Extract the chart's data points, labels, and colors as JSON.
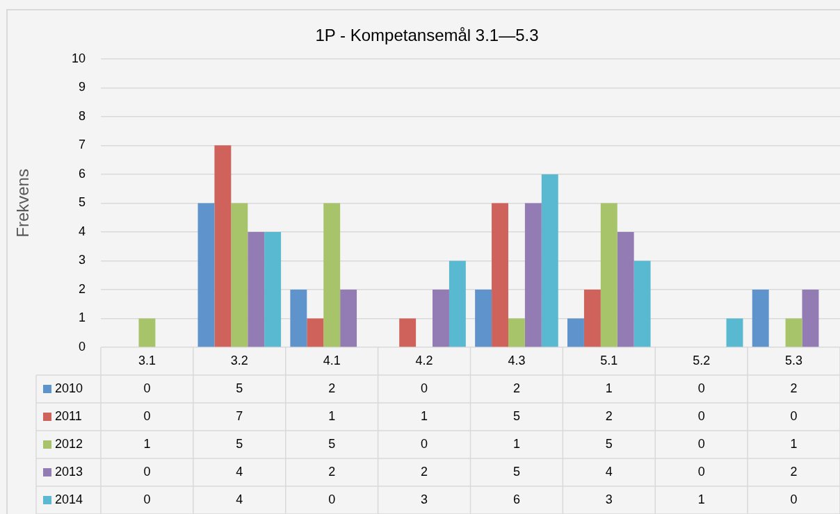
{
  "chart_data": {
    "type": "bar",
    "title": "1P - Kompetansemål 3.1—5.3",
    "ylabel": "Frekvens",
    "categories": [
      "3.1",
      "3.2",
      "4.1",
      "4.2",
      "4.3",
      "5.1",
      "5.2",
      "5.3"
    ],
    "series": [
      {
        "name": "2010",
        "color": "#5f93cb",
        "values": [
          0,
          5,
          2,
          0,
          2,
          1,
          0,
          2
        ]
      },
      {
        "name": "2011",
        "color": "#d0625c",
        "values": [
          0,
          7,
          1,
          1,
          5,
          2,
          0,
          0
        ]
      },
      {
        "name": "2012",
        "color": "#a7c46a",
        "values": [
          1,
          5,
          5,
          0,
          1,
          5,
          0,
          1
        ]
      },
      {
        "name": "2013",
        "color": "#937bb3",
        "values": [
          0,
          4,
          2,
          2,
          5,
          4,
          0,
          2
        ]
      },
      {
        "name": "2014",
        "color": "#59b9d0",
        "values": [
          0,
          4,
          0,
          3,
          6,
          3,
          1,
          0
        ]
      }
    ],
    "ylim": [
      0,
      10
    ],
    "yticks": [
      0,
      1,
      2,
      3,
      4,
      5,
      6,
      7,
      8,
      9,
      10
    ],
    "grid": "y",
    "legend": "bottom left",
    "data_labels": true
  }
}
